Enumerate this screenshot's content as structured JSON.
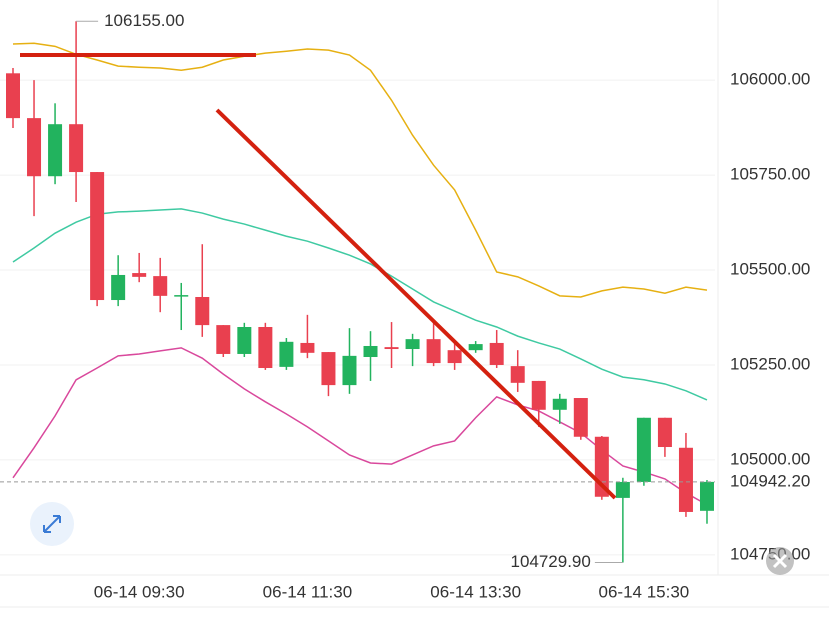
{
  "chart_data": {
    "type": "candlestick",
    "categories": [
      null,
      null,
      null,
      null,
      null,
      null,
      "06-14 09:30",
      null,
      null,
      null,
      null,
      null,
      null,
      null,
      "06-14 11:30",
      null,
      null,
      null,
      null,
      null,
      null,
      null,
      "06-14 13:30",
      null,
      null,
      null,
      null,
      null,
      null,
      null,
      "06-14 15:30",
      null,
      null,
      null
    ],
    "open": [
      106018,
      105900,
      105747,
      105884,
      105758,
      105421,
      105492,
      105484,
      105430,
      105429,
      105355,
      105279,
      105350,
      105245,
      105308,
      105284,
      105197,
      105271,
      105297,
      105292,
      105318,
      105289,
      105289,
      105308,
      105247,
      105208,
      105132,
      105163,
      105061,
      104900,
      104942,
      105111,
      105032,
      104866
    ],
    "high": [
      106032,
      106000,
      105939,
      106155,
      105758,
      105539,
      105545,
      105532,
      105466,
      105568,
      105355,
      105361,
      105361,
      105321,
      105382,
      105284,
      105347,
      105339,
      105363,
      105332,
      105368,
      105316,
      105313,
      105342,
      105289,
      105208,
      105174,
      105163,
      105063,
      104953,
      105111,
      105111,
      105071,
      104947
    ],
    "low": [
      105874,
      105642,
      105726,
      105679,
      105405,
      105405,
      105468,
      105389,
      105342,
      105324,
      105271,
      105271,
      105237,
      105237,
      105268,
      105168,
      105174,
      105208,
      105242,
      105247,
      105247,
      105237,
      105282,
      105242,
      105179,
      105087,
      105095,
      105053,
      104895,
      104729.9,
      104932,
      105008,
      104850,
      104832
    ],
    "close": [
      105900,
      105747,
      105884,
      105758,
      105421,
      105487,
      105482,
      105432,
      105434,
      105355,
      105279,
      105350,
      105242,
      105311,
      105282,
      105197,
      105274,
      105300,
      105292,
      105318,
      105255,
      105255,
      105305,
      105250,
      105203,
      105132,
      105161,
      105061,
      104903,
      104942,
      105111,
      105034,
      104863,
      104942.2
    ],
    "up_color": "#22b35e",
    "down_color": "#e9404f",
    "series": [
      {
        "color": "#e6b012",
        "values": [
          106095,
          106097,
          106089,
          106068,
          106053,
          106037,
          106034,
          106032,
          106026,
          106034,
          106053,
          106063,
          106071,
          106076,
          106082,
          106079,
          106066,
          106026,
          105947,
          105855,
          105776,
          105711,
          105605,
          105495,
          105482,
          105458,
          105432,
          105429,
          105445,
          105455,
          105450,
          105439,
          105455,
          105447
        ]
      },
      {
        "color": "#3fcaa2",
        "values": [
          105521,
          105558,
          105597,
          105626,
          105647,
          105653,
          105655,
          105658,
          105661,
          105650,
          105634,
          105621,
          105605,
          105589,
          105576,
          105558,
          105539,
          105516,
          105484,
          105450,
          105416,
          105392,
          105368,
          105350,
          105326,
          105308,
          105292,
          105266,
          105239,
          105218,
          105211,
          105200,
          105182,
          105158
        ]
      },
      {
        "color": "#d9489c",
        "values": [
          104953,
          105032,
          105116,
          105211,
          105242,
          105274,
          105279,
          105287,
          105295,
          105268,
          105226,
          105187,
          105153,
          105121,
          105087,
          105050,
          105013,
          104992,
          104989,
          105013,
          105037,
          105050,
          105111,
          105166,
          105145,
          105129,
          105100,
          105071,
          105026,
          104984,
          104968,
          104950,
          104913,
          104882
        ]
      }
    ],
    "ylim": [
      104697,
      106211
    ],
    "yticks": [
      {
        "value": 104750,
        "label": "104750.00"
      },
      {
        "value": 105000,
        "label": "105000.00"
      },
      {
        "value": 105250,
        "label": "105250.00"
      },
      {
        "value": 105500,
        "label": "105500.00"
      },
      {
        "value": 105750,
        "label": "105750.00"
      },
      {
        "value": 106000,
        "label": "106000.00"
      }
    ],
    "grid": true,
    "max_annotation": {
      "value": 106155,
      "label": "106155.00"
    },
    "min_annotation": {
      "value": 104729.9,
      "label": "104729.90"
    },
    "last_price": {
      "value": 104942.2,
      "label": "104942.20",
      "color": "#22b35e"
    }
  }
}
